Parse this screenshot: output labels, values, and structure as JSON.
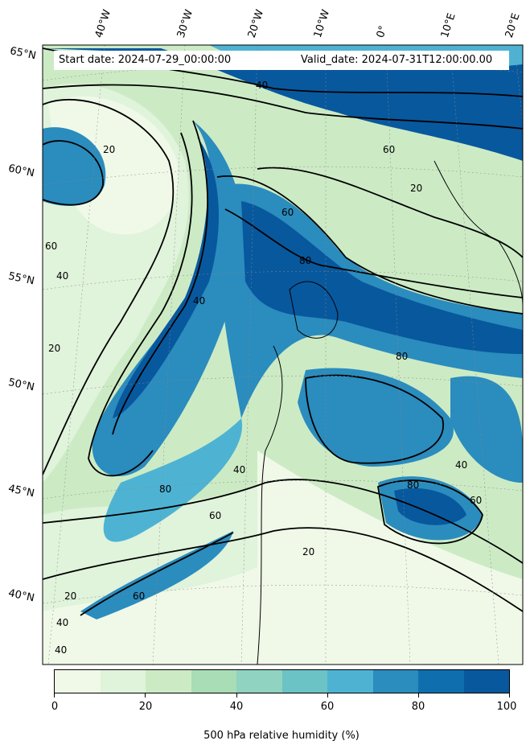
{
  "header": {
    "start_label": "Start date: 2024-07-29_00:00:00",
    "valid_label": "Valid_date: 2024-07-31T12:00:00.00"
  },
  "latitude_labels": [
    "65°N",
    "60°N",
    "55°N",
    "50°N",
    "45°N",
    "40°N"
  ],
  "longitude_labels": [
    "40°W",
    "30°W",
    "20°W",
    "10°W",
    "0°",
    "10°E",
    "20°E"
  ],
  "contour_labels": [
    "20",
    "40",
    "60",
    "80"
  ],
  "colorbar": {
    "title": "500 hPa relative humidity (%)",
    "ticks": [
      "0",
      "20",
      "40",
      "60",
      "80",
      "100"
    ],
    "colors": [
      "#f0f9e8",
      "#e0f3db",
      "#ccebc5",
      "#a8ddb5",
      "#8fd3c0",
      "#6bc3c6",
      "#4eb3d3",
      "#2b8cbe",
      "#0f6fae",
      "#08589e"
    ]
  },
  "map_colors": {
    "very_dry": "#f0f9e8",
    "dry": "#e0f3db",
    "low": "#ccebc5",
    "mid": "#8fd3c0",
    "moist": "#4eb3d3",
    "wet": "#2b8cbe",
    "very_wet": "#08589e",
    "contour": "#000000"
  }
}
